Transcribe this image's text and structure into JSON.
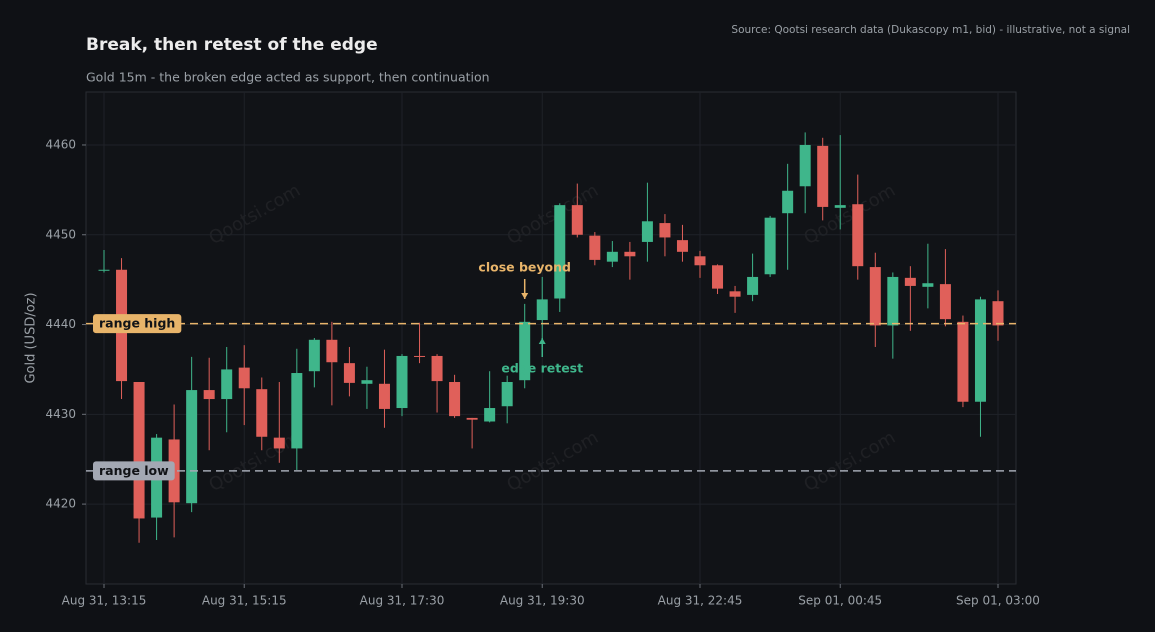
{
  "chart_data": {
    "type": "candlestick",
    "title": "Break, then retest of the edge",
    "subtitle": "Gold 15m - the broken edge acted as support, then continuation",
    "source": "Source: Qootsi research data (Dukascopy m1, bid) - illustrative, not a signal",
    "y_label": "Gold (USD/oz)",
    "watermark": "Qootsi.com",
    "categories": [
      "Aug 31, 13:15",
      null,
      null,
      null,
      null,
      null,
      null,
      null,
      "Aug 31, 15:15",
      null,
      null,
      null,
      null,
      null,
      null,
      null,
      null,
      "Aug 31, 17:30",
      null,
      null,
      null,
      null,
      null,
      null,
      null,
      "Aug 31, 19:30",
      null,
      null,
      null,
      null,
      null,
      null,
      null,
      null,
      "Aug 31, 22:45",
      null,
      null,
      null,
      null,
      null,
      null,
      null,
      "Sep 01, 00:45",
      null,
      null,
      null,
      null,
      null,
      null,
      null,
      null,
      "Sep 01, 03:00"
    ],
    "open": [
      4446,
      4446.1,
      4433.6,
      4418.5,
      4427.2,
      4420.1,
      4432.7,
      4431.7,
      4435.2,
      4432.8,
      4427.4,
      4426.2,
      4434.8,
      4438.3,
      4435.7,
      4433.4,
      4433.4,
      4430.7,
      4436.5,
      4436.5,
      4433.6,
      4429.6,
      4429.2,
      4430.9,
      4433.8,
      4440.5,
      4442.9,
      4453.3,
      4449.9,
      4447,
      4448.1,
      4449.2,
      4451.3,
      4449.4,
      4447.6,
      4446.6,
      4443.7,
      4443.3,
      4445.6,
      4452.4,
      4455.4,
      4459.9,
      4453,
      4453.4,
      4446.4,
      4439.9,
      4445.2,
      4444.2,
      4444.5,
      4440.3,
      4431.4,
      4442.6
    ],
    "high": [
      4448.3,
      4447.4,
      4433.6,
      4427.8,
      4431.1,
      4436.4,
      4436.3,
      4437.5,
      4437.7,
      4434.1,
      4433.6,
      4437.3,
      4438.5,
      4440.3,
      4437.5,
      4435.3,
      4437.2,
      4436.7,
      4440.2,
      4436.7,
      4434.4,
      4429.6,
      4434.8,
      4434.3,
      4442.3,
      4445.3,
      4453.5,
      4455.7,
      4450.3,
      4449.3,
      4449.2,
      4455.8,
      4452.3,
      4451.1,
      4448.2,
      4446.7,
      4444.3,
      4447.9,
      4452.1,
      4457.9,
      4461.4,
      4460.8,
      4461.1,
      4456.7,
      4448,
      4445.8,
      4446.5,
      4449,
      4448.4,
      4441,
      4443.1,
      4443.8
    ],
    "low": [
      4445.8,
      4431.7,
      4415.7,
      4416,
      4416.3,
      4419.1,
      4426,
      4428,
      4428.8,
      4426,
      4424.6,
      4423.8,
      4433,
      4431,
      4432,
      4430.6,
      4428.5,
      4429.8,
      4435.7,
      4430.2,
      4429.6,
      4426.2,
      4429.1,
      4429,
      4432.9,
      4436.4,
      4441.4,
      4449.7,
      4446.6,
      4446.4,
      4445,
      4447,
      4447.6,
      4447,
      4445.2,
      4443.4,
      4441.3,
      4442.6,
      4445.3,
      4446.1,
      4452.4,
      4451.6,
      4450.6,
      4445,
      4437.5,
      4436.2,
      4439.3,
      4441.8,
      4439.8,
      4430.8,
      4427.5,
      4438.2
    ],
    "close": [
      4446.1,
      4433.7,
      4418.4,
      4427.4,
      4420.2,
      4432.7,
      4431.7,
      4435.0,
      4432.9,
      4427.5,
      4426.2,
      4434.6,
      4438.3,
      4435.8,
      4433.5,
      4433.8,
      4430.6,
      4436.5,
      4436.4,
      4433.7,
      4429.8,
      4429.4,
      4430.7,
      4433.6,
      4440.3,
      4442.8,
      4453.3,
      4450,
      4447.2,
      4448.1,
      4447.6,
      4451.5,
      4449.7,
      4448.1,
      4446.6,
      4444,
      4443.1,
      4445.3,
      4451.9,
      4454.9,
      4460,
      4453.1,
      4453.3,
      4446.5,
      4439.9,
      4445.3,
      4444.3,
      4444.6,
      4440.6,
      4431.4,
      4442.8,
      4439.9
    ],
    "up_color": "#3fb68b",
    "down_color": "#e0605a",
    "ylim": [
      4411.1,
      4465.9
    ],
    "yticks": [
      4420,
      4430,
      4440,
      4450,
      4460
    ],
    "grid": true,
    "levels": [
      {
        "label": "range high",
        "value": 4440.1,
        "color": "#e8b46a"
      },
      {
        "label": "range low",
        "value": 4423.7,
        "color": "#a3a8b3"
      }
    ],
    "annotations": [
      {
        "text": "close beyond",
        "color": "#e8b46a"
      },
      {
        "text": "edge retest",
        "color": "#3fb68b"
      }
    ]
  }
}
